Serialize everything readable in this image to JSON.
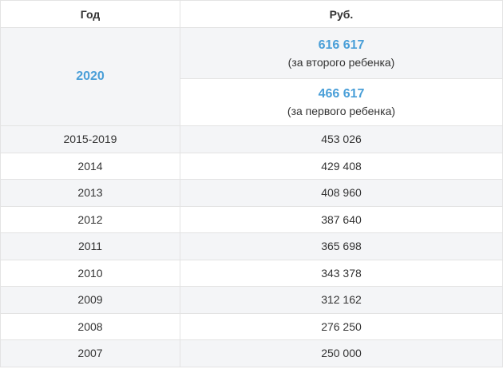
{
  "table": {
    "header": [
      "Год",
      "Руб."
    ],
    "highlight": {
      "year": "2020",
      "items": [
        {
          "amount": "616 617",
          "note": "(за второго ребенка)"
        },
        {
          "amount": "466 617",
          "note": "(за первого ребенка)"
        }
      ]
    },
    "rows": [
      [
        "2015-2019",
        "453 026"
      ],
      [
        "2014",
        "429 408"
      ],
      [
        "2013",
        "408 960"
      ],
      [
        "2012",
        "387 640"
      ],
      [
        "2011",
        "365 698"
      ],
      [
        "2010",
        "343 378"
      ],
      [
        "2009",
        "312 162"
      ],
      [
        "2008",
        "276 250"
      ],
      [
        "2007",
        "250 000"
      ]
    ]
  }
}
